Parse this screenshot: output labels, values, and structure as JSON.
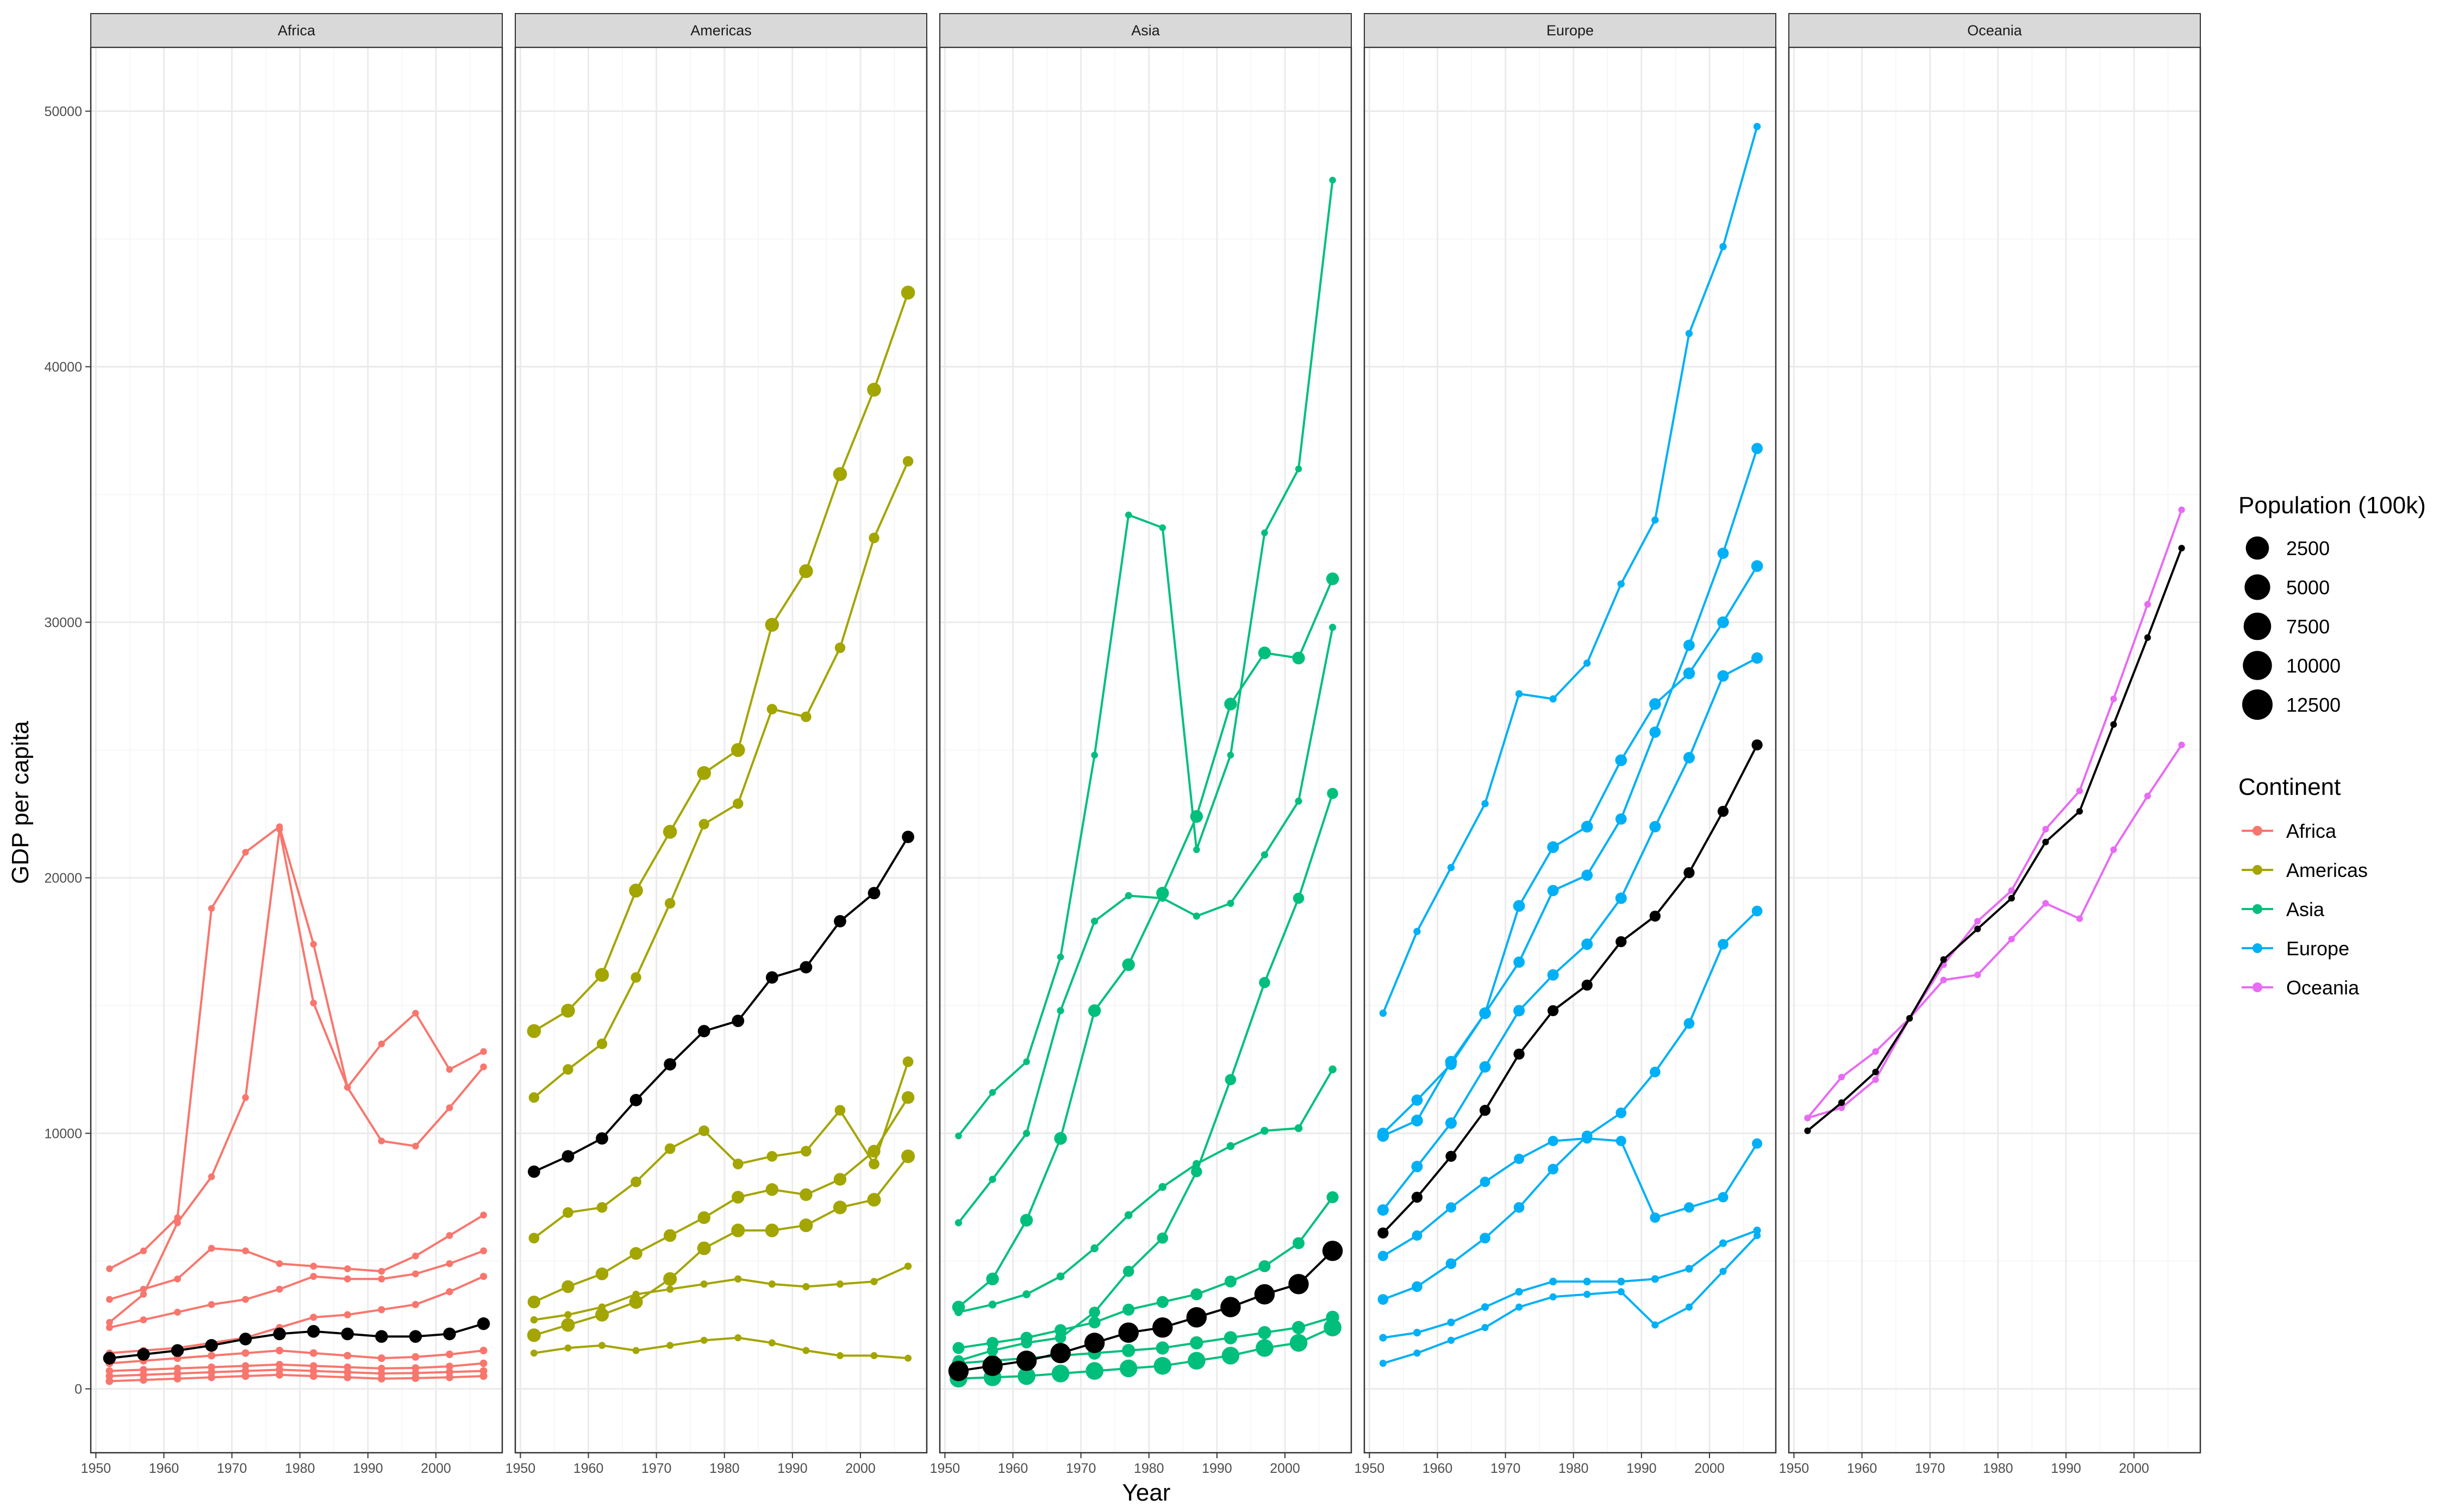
{
  "chart_data": {
    "type": "line",
    "facet_by": "Continent",
    "xlabel": "Year",
    "ylabel": "GDP per capita",
    "ylim": [
      0,
      50000
    ],
    "xlim": [
      1952,
      2007
    ],
    "yticks": [
      0,
      10000,
      20000,
      30000,
      40000,
      50000
    ],
    "xticks": [
      1950,
      1960,
      1970,
      1980,
      1990,
      2000
    ],
    "years": [
      1952,
      1957,
      1962,
      1967,
      1972,
      1977,
      1982,
      1987,
      1992,
      1997,
      2002,
      2007
    ],
    "grid": true,
    "panels": [
      {
        "name": "Africa",
        "color": "#F8766D",
        "series": [
          {
            "values": [
              1200,
              1350,
              1500,
              1700,
              1950,
              2150,
              2250,
              2150,
              2050,
              2050,
              2150,
              2550
            ],
            "pop": 1200
          },
          {
            "values": [
              4700,
              5400,
              6700,
              18800,
              21000,
              22000,
              17400,
              11800,
              13500,
              14700,
              12500,
              13200
            ],
            "pop": 3
          },
          {
            "values": [
              2600,
              3700,
              6500,
              8300,
              11400,
              21900,
              15100,
              11800,
              9700,
              9500,
              11000,
              12600
            ],
            "pop": 7
          },
          {
            "values": [
              3500,
              3900,
              4300,
              5500,
              5400,
              4900,
              4800,
              4700,
              4600,
              5200,
              6000,
              6800
            ],
            "pop": 10
          },
          {
            "values": [
              2400,
              2700,
              3000,
              3300,
              3500,
              3900,
              4400,
              4300,
              4300,
              4500,
              4900,
              5400
            ],
            "pop": 15
          },
          {
            "values": [
              1400,
              1500,
              1600,
              1800,
              2000,
              2400,
              2800,
              2900,
              3100,
              3300,
              3800,
              4400
            ],
            "pop": 30
          },
          {
            "values": [
              700,
              750,
              800,
              850,
              900,
              950,
              900,
              850,
              800,
              820,
              880,
              1000
            ],
            "pop": 60
          },
          {
            "values": [
              500,
              550,
              600,
              650,
              700,
              750,
              700,
              650,
              600,
              620,
              660,
              700
            ],
            "pop": 80
          },
          {
            "values": [
              1000,
              1100,
              1200,
              1300,
              1400,
              1500,
              1400,
              1300,
              1200,
              1250,
              1350,
              1500
            ],
            "pop": 90
          },
          {
            "values": [
              300,
              350,
              400,
              450,
              500,
              550,
              500,
              450,
              400,
              420,
              450,
              500
            ],
            "pop": 100
          }
        ]
      },
      {
        "name": "Americas",
        "color": "#A3A500",
        "series": [
          {
            "values": [
              8500,
              9100,
              9800,
              11300,
              12700,
              14000,
              14400,
              16100,
              16500,
              18300,
              19400,
              21600
            ],
            "pop": 1000
          },
          {
            "values": [
              14000,
              14800,
              16200,
              19500,
              21800,
              24100,
              25000,
              29900,
              32000,
              35800,
              39100,
              42900
            ],
            "pop": 2000
          },
          {
            "values": [
              11400,
              12500,
              13500,
              16100,
              19000,
              22100,
              22900,
              26600,
              26300,
              29000,
              33300,
              36300
            ],
            "pop": 250
          },
          {
            "values": [
              5900,
              6900,
              7100,
              8100,
              9400,
              10100,
              8800,
              9100,
              9300,
              10900,
              8800,
              12800
            ],
            "pop": 300
          },
          {
            "values": [
              3400,
              4000,
              4500,
              5300,
              6000,
              6700,
              7500,
              7800,
              7600,
              8200,
              9300,
              11400
            ],
            "pop": 1200
          },
          {
            "values": [
              2100,
              2500,
              2900,
              3400,
              4300,
              5500,
              6200,
              6200,
              6400,
              7100,
              7400,
              9100
            ],
            "pop": 1800
          },
          {
            "values": [
              1400,
              1600,
              1700,
              1500,
              1700,
              1900,
              2000,
              1800,
              1500,
              1300,
              1300,
              1200
            ],
            "pop": 20
          },
          {
            "values": [
              2700,
              2900,
              3200,
              3700,
              3900,
              4100,
              4300,
              4100,
              4000,
              4100,
              4200,
              4800
            ],
            "pop": 40
          }
        ]
      },
      {
        "name": "Asia",
        "color": "#00BF7D",
        "series": [
          {
            "values": [
              700,
              900,
              1100,
              1400,
              1800,
              2200,
              2400,
              2800,
              3200,
              3700,
              4100,
              5400
            ],
            "pop": 10000
          },
          {
            "values": [
              400,
              450,
              500,
              600,
              700,
              800,
              900,
              1100,
              1300,
              1600,
              1800,
              2400
            ],
            "pop": 6000
          },
          {
            "values": [
              9900,
              11600,
              12800,
              16900,
              24800,
              34200,
              33700,
              21100,
              24800,
              33500,
              36000,
              47300
            ],
            "pop": 5
          },
          {
            "values": [
              6500,
              8200,
              10000,
              14800,
              18300,
              19300,
              19200,
              18500,
              19000,
              20900,
              23000,
              29800
            ],
            "pop": 30
          },
          {
            "values": [
              3200,
              4300,
              6600,
              9800,
              14800,
              16600,
              19400,
              22400,
              26800,
              28800,
              28600,
              31700
            ],
            "pop": 1200
          },
          {
            "values": [
              1100,
              1500,
              1800,
              2000,
              3000,
              4600,
              5900,
              8500,
              12100,
              15900,
              19200,
              23300
            ],
            "pop": 450
          },
          {
            "values": [
              3000,
              3300,
              3700,
              4400,
              5500,
              6800,
              7900,
              8800,
              9500,
              10100,
              10200,
              12500
            ],
            "pop": 150
          },
          {
            "values": [
              1600,
              1800,
              2000,
              2300,
              2600,
              3100,
              3400,
              3700,
              4200,
              4800,
              5700,
              7500
            ],
            "pop": 800
          },
          {
            "values": [
              1000,
              1100,
              1200,
              1300,
              1400,
              1500,
              1600,
              1800,
              2000,
              2200,
              2400,
              2800
            ],
            "pop": 1500
          }
        ]
      },
      {
        "name": "Europe",
        "color": "#00B0F6",
        "series": [
          {
            "values": [
              6100,
              7500,
              9100,
              10900,
              13100,
              14800,
              15800,
              17500,
              18500,
              20200,
              22600,
              25200
            ],
            "pop": 400
          },
          {
            "values": [
              14700,
              17900,
              20400,
              22900,
              27200,
              27000,
              28400,
              31500,
              34000,
              41300,
              44700,
              49400
            ],
            "pop": 40
          },
          {
            "values": [
              10000,
              11300,
              12700,
              14700,
              16700,
              19500,
              20100,
              22300,
              25700,
              29100,
              32700,
              36800
            ],
            "pop": 500
          },
          {
            "values": [
              9900,
              10500,
              12800,
              14700,
              18900,
              21200,
              22000,
              24600,
              26800,
              28000,
              30000,
              32200
            ],
            "pop": 700
          },
          {
            "values": [
              7000,
              8700,
              10400,
              12600,
              14800,
              16200,
              17400,
              19200,
              22000,
              24700,
              27900,
              28600
            ],
            "pop": 560
          },
          {
            "values": [
              3500,
              4000,
              4900,
              5900,
              7100,
              8600,
              9900,
              10800,
              12400,
              14300,
              17400,
              18700
            ],
            "pop": 300
          },
          {
            "values": [
              2000,
              2200,
              2600,
              3200,
              3800,
              4200,
              4200,
              4200,
              4300,
              4700,
              5700,
              6200
            ],
            "pop": 100
          },
          {
            "values": [
              5200,
              6000,
              7100,
              8100,
              9000,
              9700,
              9800,
              9700,
              6700,
              7100,
              7500,
              9600
            ],
            "pop": 200
          },
          {
            "values": [
              1000,
              1400,
              1900,
              2400,
              3200,
              3600,
              3700,
              3800,
              2500,
              3200,
              4600,
              6000
            ],
            "pop": 30
          }
        ]
      },
      {
        "name": "Oceania",
        "color": "#E76BF3",
        "series": [
          {
            "values": [
              10100,
              11200,
              12400,
              14500,
              16800,
              18000,
              19200,
              21400,
              22600,
              26000,
              29400,
              32900
            ],
            "pop": 1
          },
          {
            "values": [
              10600,
              12200,
              13200,
              14500,
              16600,
              18300,
              19500,
              21900,
              23400,
              27000,
              30700,
              34400
            ],
            "pop": 1
          },
          {
            "values": [
              10600,
              11000,
              12100,
              14500,
              16000,
              16200,
              17600,
              19000,
              18400,
              21100,
              23200,
              25200
            ],
            "pop": 1
          }
        ]
      }
    ],
    "legend": {
      "position": "right",
      "size_title": "Population (100k)",
      "size_levels": [
        "2500",
        "5000",
        "7500",
        "10000",
        "12500"
      ],
      "color_title": "Continent",
      "color_labels": [
        "Africa",
        "Americas",
        "Asia",
        "Europe",
        "Oceania"
      ],
      "colors": [
        "#F8766D",
        "#A3A500",
        "#00BF7D",
        "#00B0F6",
        "#E76BF3"
      ],
      "summary_color": "#000000"
    }
  }
}
